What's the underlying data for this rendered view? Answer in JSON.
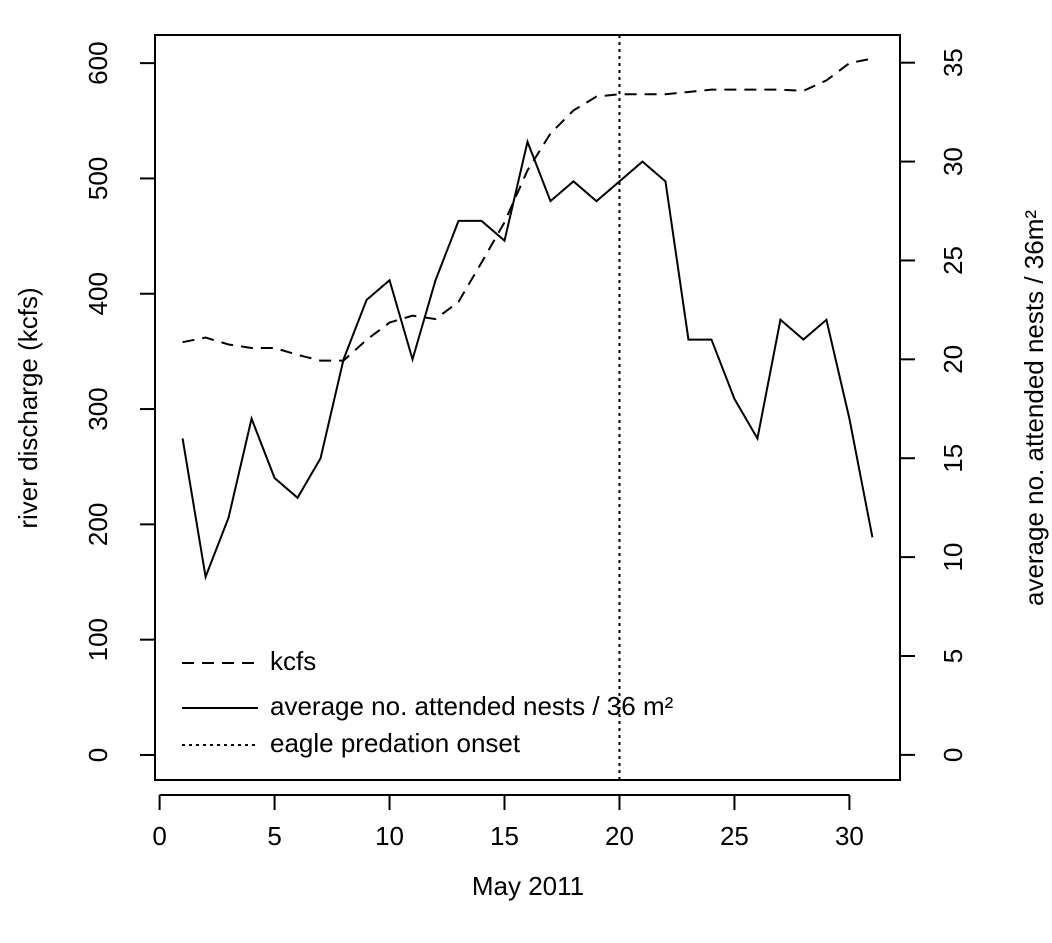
{
  "chart_data": {
    "type": "line",
    "x_label": "May 2011",
    "y_label": "river discharge (kcfs)",
    "y2_label": "average no. attended nests / 36m²",
    "x": [
      1,
      2,
      3,
      4,
      5,
      6,
      7,
      8,
      9,
      10,
      11,
      12,
      13,
      14,
      15,
      16,
      17,
      18,
      19,
      20,
      21,
      22,
      23,
      24,
      25,
      26,
      27,
      28,
      29,
      30,
      31
    ],
    "series": [
      {
        "name": "kcfs",
        "color": "#000000",
        "dash": "dashed",
        "values": [
          358,
          362,
          356,
          353,
          353,
          347,
          342,
          342,
          360,
          375,
          381,
          378,
          393,
          427,
          462,
          507,
          539,
          559,
          571,
          573,
          573,
          573,
          575,
          577,
          577,
          577,
          577,
          576,
          585,
          600,
          604
        ]
      },
      {
        "name": "average no. attended nests / 36 m²",
        "color": "#000000",
        "dash": "solid",
        "axis": "y2",
        "values": [
          16,
          9,
          12,
          17,
          14,
          13,
          15,
          20,
          23,
          24,
          20,
          24,
          27,
          27,
          26,
          31,
          28,
          29,
          28,
          29,
          30,
          29,
          21,
          21,
          18,
          16,
          22,
          21,
          22,
          17,
          11
        ]
      }
    ],
    "vline": {
      "name": "eagle predation onset",
      "value": 20,
      "color": "#000000",
      "dash": "dotted"
    },
    "xlim": [
      -0.2,
      32.2
    ],
    "xticks": [
      0,
      5,
      10,
      15,
      20,
      25,
      30
    ],
    "ylim": [
      -21.7,
      624.4
    ],
    "yticks": [
      0,
      100,
      200,
      300,
      400,
      500,
      600
    ],
    "y2lim": [
      -1.27,
      36.4
    ],
    "y2ticks": [
      0,
      5,
      10,
      15,
      20,
      25,
      30,
      35
    ],
    "legend": "bottomleft"
  }
}
